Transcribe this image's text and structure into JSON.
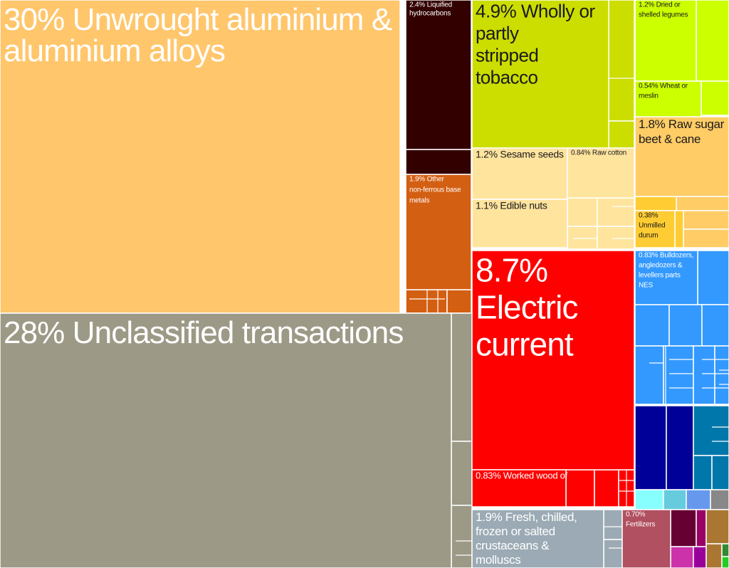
{
  "chart_data": {
    "type": "treemap",
    "title": "",
    "tiles": [
      {
        "id": "aluminium",
        "label": "30% Unwrought aluminium & aluminium alloys",
        "share": 30,
        "color": "#FFC66C"
      },
      {
        "id": "unclassified",
        "label": "28% Unclassified transactions",
        "share": 28,
        "color": "#9C9986"
      },
      {
        "id": "electric",
        "label": "8.7% Electric current",
        "share": 8.7,
        "color": "#FF0000"
      },
      {
        "id": "tobacco",
        "label": "4.9% Wholly or partly stripped tobacco",
        "share": 4.9,
        "color": "#CCDD00"
      },
      {
        "id": "hydrocarbons",
        "label": "2.4% Liquified hydrocarbons",
        "share": 2.4,
        "color": "#330000"
      },
      {
        "id": "crustaceans",
        "label": "1.9% Fresh, chilled, frozen or salted crustaceans & molluscs",
        "share": 1.9,
        "color": "#9BAAB4"
      },
      {
        "id": "nonferrous",
        "label": "1.9% Other non-ferrous base metals",
        "share": 1.9,
        "color": "#D35F12"
      },
      {
        "id": "rawsugar",
        "label": "1.8% Raw sugar beet & cane",
        "share": 1.8,
        "color": "#FFCC66"
      },
      {
        "id": "sesame",
        "label": "1.2% Sesame seeds",
        "share": 1.2,
        "color": "#FFE49E"
      },
      {
        "id": "legumes",
        "label": "1.2% Dried or shelled legumes",
        "share": 1.2,
        "color": "#CCFF00"
      },
      {
        "id": "ediblenuts",
        "label": "1.1% Edible nuts",
        "share": 1.1,
        "color": "#FFE49E"
      },
      {
        "id": "rawcotton",
        "label": "0.84% Raw cotton",
        "share": 0.84,
        "color": "#FFE49E"
      },
      {
        "id": "bulldozers",
        "label": "0.83% Bulldozers, angledozers & levellers parts NES",
        "share": 0.83,
        "color": "#3399FF"
      },
      {
        "id": "workedwood",
        "label": "0.83% Worked wood of",
        "share": 0.83,
        "color": "#FF0000"
      },
      {
        "id": "wheat",
        "label": "0.54% Wheat or meslin",
        "share": 0.54,
        "color": "#CCFF00"
      },
      {
        "id": "durum",
        "label": "0.38% Unmilled durum",
        "share": 0.38,
        "color": "#FFCC33"
      },
      {
        "id": "fertilizers",
        "label": "0.70% Fertilizers",
        "share": 0.7,
        "color": "#B05060"
      }
    ],
    "minor_tiles": [
      {
        "group": "tobacco",
        "color": "#CCDD00"
      },
      {
        "group": "tobacco",
        "color": "#CCDD00"
      },
      {
        "group": "tobacco",
        "color": "#CCDD00"
      },
      {
        "group": "legumes",
        "color": "#CCFF00"
      },
      {
        "group": "legumes",
        "color": "#CCFF00"
      },
      {
        "group": "legumes",
        "color": "#CCFF00"
      },
      {
        "group": "rawsugar",
        "color": "#FFCC66"
      },
      {
        "group": "rawsugar",
        "color": "#FFCC66"
      },
      {
        "group": "rawsugar",
        "color": "#FFCC66"
      },
      {
        "group": "rawsugar",
        "color": "#FFCC33"
      },
      {
        "group": "rawsugar",
        "color": "#FFCC33"
      },
      {
        "group": "sesame",
        "color": "#FFE49E"
      },
      {
        "group": "sesame",
        "color": "#FFE49E"
      },
      {
        "group": "sesame",
        "color": "#FFE49E"
      },
      {
        "group": "sesame",
        "color": "#FFE49E"
      },
      {
        "group": "hydrocarbons",
        "color": "#330000"
      },
      {
        "group": "nonferrous",
        "color": "#D35F12"
      },
      {
        "group": "nonferrous",
        "color": "#D35F12"
      },
      {
        "group": "nonferrous",
        "color": "#D35F12"
      },
      {
        "group": "unclassified",
        "color": "#9C9986"
      },
      {
        "group": "unclassified",
        "color": "#9C9986"
      },
      {
        "group": "unclassified",
        "color": "#9C9986"
      },
      {
        "group": "electric",
        "color": "#FF0000"
      },
      {
        "group": "electric",
        "color": "#FF0000"
      },
      {
        "group": "electric",
        "color": "#FF0000"
      },
      {
        "group": "machinery",
        "color": "#3399FF"
      },
      {
        "group": "machinery",
        "color": "#3399FF"
      },
      {
        "group": "machinery",
        "color": "#3399FF"
      },
      {
        "group": "machinery",
        "color": "#3399FF"
      },
      {
        "group": "machinery",
        "color": "#3399FF"
      },
      {
        "group": "machinery",
        "color": "#3399FF"
      },
      {
        "group": "machinery",
        "color": "#3399FF"
      },
      {
        "group": "machinery",
        "color": "#3399FF"
      },
      {
        "group": "transport",
        "color": "#000099"
      },
      {
        "group": "transport",
        "color": "#000099"
      },
      {
        "group": "transport",
        "color": "#0077AA"
      },
      {
        "group": "transport",
        "color": "#0077AA"
      },
      {
        "group": "transport",
        "color": "#0077AA"
      },
      {
        "group": "misc",
        "color": "#88FFFF"
      },
      {
        "group": "misc",
        "color": "#66CCDD"
      },
      {
        "group": "misc",
        "color": "#6699EE"
      },
      {
        "group": "misc",
        "color": "#888888"
      },
      {
        "group": "crustaceans",
        "color": "#9BAAB4"
      },
      {
        "group": "crustaceans",
        "color": "#9BAAB4"
      },
      {
        "group": "chemicals",
        "color": "#660033"
      },
      {
        "group": "chemicals",
        "color": "#990066"
      },
      {
        "group": "chemicals",
        "color": "#CC33AA"
      },
      {
        "group": "chemicals",
        "color": "#990099"
      },
      {
        "group": "textiles",
        "color": "#AA7733"
      },
      {
        "group": "textiles",
        "color": "#AA7733"
      },
      {
        "group": "stone",
        "color": "#338833"
      },
      {
        "group": "stone",
        "color": "#22CC22"
      }
    ]
  }
}
